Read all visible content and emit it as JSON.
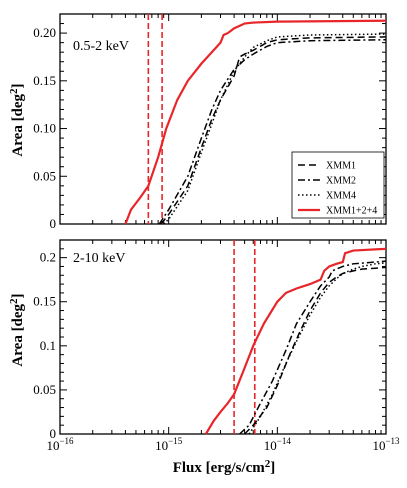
{
  "chart_data": [
    {
      "type": "line",
      "panel_label": "0.5-2 keV",
      "xlabel": "Flux [erg/s/cm2]",
      "ylabel": "Area [deg2]",
      "xscale": "log",
      "xlim": [
        1e-16,
        1e-13
      ],
      "ylim": [
        0,
        0.22
      ],
      "yticks": [
        "0",
        "0.05",
        "0.10",
        "0.15",
        "0.20"
      ],
      "ytick_values": [
        0,
        0.05,
        0.1,
        0.15,
        0.2
      ],
      "legend_placement": "lower-right",
      "vlines": [
        6.5e-16,
        8.7e-16
      ],
      "vline_color": "#e8262a",
      "series": [
        {
          "name": "XMM1",
          "style": "dashed",
          "color": "#000000",
          "x": [
            8.5e-16,
            1e-15,
            1.5e-15,
            2e-15,
            2.5e-15,
            3e-15,
            4e-15,
            4.5e-15,
            5e-15,
            6e-15,
            8e-15,
            1e-14,
            2e-14,
            1e-13
          ],
          "y": [
            0,
            0.01,
            0.04,
            0.08,
            0.11,
            0.13,
            0.155,
            0.175,
            0.178,
            0.182,
            0.19,
            0.193,
            0.195,
            0.196
          ]
        },
        {
          "name": "XMM2",
          "style": "dashdot",
          "color": "#000000",
          "x": [
            8.2e-16,
            1e-15,
            1.5e-15,
            2e-15,
            2.5e-15,
            3e-15,
            4e-15,
            5e-15,
            6e-15,
            8e-15,
            1e-14,
            2e-14,
            1e-13
          ],
          "y": [
            0,
            0.015,
            0.05,
            0.09,
            0.12,
            0.14,
            0.162,
            0.172,
            0.178,
            0.186,
            0.19,
            0.192,
            0.193
          ]
        },
        {
          "name": "XMM4",
          "style": "dotted",
          "color": "#000000",
          "x": [
            9e-16,
            1e-15,
            1.5e-15,
            2e-15,
            2.5e-15,
            3e-15,
            4e-15,
            5e-15,
            6e-15,
            8e-15,
            1e-14,
            2e-14,
            1e-13
          ],
          "y": [
            0,
            0.005,
            0.035,
            0.075,
            0.105,
            0.13,
            0.16,
            0.175,
            0.185,
            0.192,
            0.196,
            0.198,
            0.199
          ]
        },
        {
          "name": "XMM1+2+4",
          "style": "solid",
          "color": "#e8262a",
          "x": [
            4e-16,
            4.5e-16,
            5.5e-16,
            6.5e-16,
            8e-16,
            9.5e-16,
            1.2e-15,
            1.5e-15,
            2e-15,
            2.5e-15,
            3e-15,
            3.2e-15,
            3.5e-15,
            4e-15,
            5e-15,
            6e-15,
            1e-14,
            1e-13
          ],
          "y": [
            0,
            0.015,
            0.028,
            0.04,
            0.07,
            0.1,
            0.13,
            0.15,
            0.168,
            0.18,
            0.19,
            0.198,
            0.2,
            0.205,
            0.21,
            0.211,
            0.212,
            0.213
          ]
        }
      ]
    },
    {
      "type": "line",
      "panel_label": "2-10 keV",
      "xlabel": "Flux [erg/s/cm2]",
      "ylabel": "Area [deg2]",
      "xscale": "log",
      "xlim": [
        1e-16,
        1e-13
      ],
      "ylim": [
        0,
        0.22
      ],
      "xticks": [
        "10−16",
        "10−15",
        "10−14",
        "10−13"
      ],
      "xtick_values": [
        1e-16,
        1e-15,
        1e-14,
        1e-13
      ],
      "yticks": [
        "0",
        "0.05",
        "0.1",
        "0.15",
        "0.2"
      ],
      "ytick_values": [
        0,
        0.05,
        0.1,
        0.15,
        0.2
      ],
      "vlines": [
        4e-15,
        6.2e-15
      ],
      "vline_color": "#e8262a",
      "series": [
        {
          "name": "XMM1",
          "style": "dashed",
          "color": "#000000",
          "x": [
            5e-15,
            6e-15,
            8e-15,
            1e-14,
            1.3e-14,
            1.6e-14,
            2e-14,
            2.5e-14,
            3e-14,
            3.5e-14,
            4e-14,
            5e-14,
            6e-14,
            8e-14,
            1e-13
          ],
          "y": [
            0,
            0.01,
            0.03,
            0.055,
            0.09,
            0.115,
            0.14,
            0.16,
            0.172,
            0.178,
            0.182,
            0.185,
            0.187,
            0.188,
            0.189
          ]
        },
        {
          "name": "XMM2",
          "style": "dashdot",
          "color": "#000000",
          "x": [
            4.5e-15,
            5.5e-15,
            7e-15,
            9e-15,
            1.2e-14,
            1.5e-14,
            2e-14,
            2.5e-14,
            3e-14,
            3.2e-14,
            4e-14,
            5e-14,
            8e-14,
            1e-13
          ],
          "y": [
            0,
            0.01,
            0.035,
            0.06,
            0.095,
            0.125,
            0.15,
            0.168,
            0.178,
            0.185,
            0.19,
            0.193,
            0.195,
            0.196
          ]
        },
        {
          "name": "XMM4",
          "style": "dotted",
          "color": "#000000",
          "x": [
            5.5e-15,
            7e-15,
            9e-15,
            1.2e-14,
            1.5e-14,
            2e-14,
            2.5e-14,
            3e-14,
            3.5e-14,
            4e-14,
            5e-14,
            6e-14,
            8e-14,
            1e-13
          ],
          "y": [
            0,
            0.02,
            0.045,
            0.08,
            0.105,
            0.135,
            0.155,
            0.168,
            0.176,
            0.182,
            0.187,
            0.19,
            0.193,
            0.194
          ]
        },
        {
          "name": "XMM1+2+4",
          "style": "solid",
          "color": "#e8262a",
          "x": [
            2.2e-15,
            2.6e-15,
            3e-15,
            3.5e-15,
            4e-15,
            5e-15,
            6e-15,
            7.5e-15,
            1e-14,
            1.2e-14,
            1.5e-14,
            2e-14,
            2.5e-14,
            2.7e-14,
            3e-14,
            3.5e-14,
            4e-14,
            4.2e-14,
            5e-14,
            1e-13
          ],
          "y": [
            0,
            0.015,
            0.025,
            0.035,
            0.045,
            0.075,
            0.1,
            0.125,
            0.15,
            0.16,
            0.165,
            0.17,
            0.175,
            0.185,
            0.19,
            0.193,
            0.195,
            0.205,
            0.208,
            0.21
          ]
        }
      ]
    }
  ],
  "legend": [
    {
      "label": "XMM1",
      "style": "dashed"
    },
    {
      "label": "XMM2",
      "style": "dashdot"
    },
    {
      "label": "XMM4",
      "style": "dotted"
    },
    {
      "label": "XMM1+2+4",
      "style": "solid-red"
    }
  ]
}
